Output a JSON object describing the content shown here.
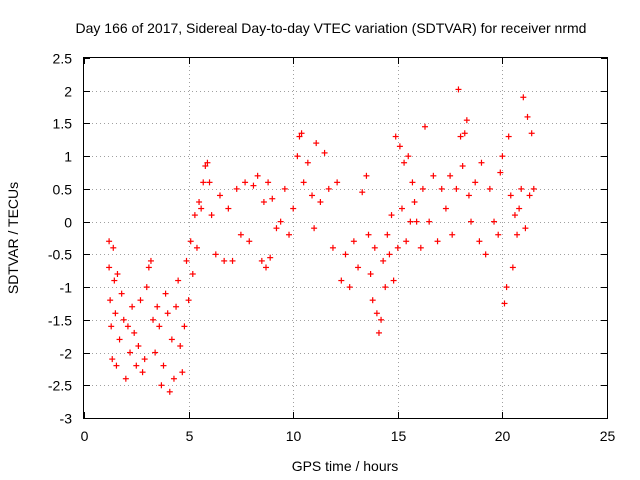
{
  "chart_data": {
    "type": "scatter",
    "title": "Day 166 of 2017, Sidereal Day-to-day VTEC variation (SDTVAR) for receiver nrmd",
    "xlabel": "GPS time / hours",
    "ylabel": "SDTVAR / TECUs",
    "xlim": [
      0,
      25
    ],
    "ylim": [
      -3,
      2.5
    ],
    "xticks": [
      0,
      5,
      10,
      15,
      20,
      25
    ],
    "xtick_labels": [
      "0",
      "5",
      "10",
      "15",
      "20",
      "25"
    ],
    "yticks": [
      -3,
      -2.5,
      -2,
      -1.5,
      -1,
      -0.5,
      0,
      0.5,
      1,
      1.5,
      2,
      2.5
    ],
    "ytick_labels": [
      "-3",
      "-2.5",
      "-2",
      "-1.5",
      "-1",
      "-0.5",
      "0",
      "0.5",
      "1",
      "1.5",
      "2",
      "2.5"
    ],
    "grid": true,
    "marker": "+",
    "color": "#ff0000",
    "series": [
      {
        "name": "SDTVAR",
        "points": [
          [
            1.2,
            -0.3
          ],
          [
            1.2,
            -0.7
          ],
          [
            1.25,
            -1.2
          ],
          [
            1.3,
            -1.6
          ],
          [
            1.35,
            -2.1
          ],
          [
            1.4,
            -0.4
          ],
          [
            1.45,
            -0.9
          ],
          [
            1.5,
            -1.4
          ],
          [
            1.55,
            -2.2
          ],
          [
            1.6,
            -0.8
          ],
          [
            1.7,
            -1.8
          ],
          [
            1.8,
            -1.1
          ],
          [
            1.9,
            -1.5
          ],
          [
            2.0,
            -2.4
          ],
          [
            2.1,
            -1.6
          ],
          [
            2.2,
            -2.0
          ],
          [
            2.3,
            -1.3
          ],
          [
            2.4,
            -1.7
          ],
          [
            2.5,
            -2.2
          ],
          [
            2.6,
            -1.9
          ],
          [
            2.7,
            -1.2
          ],
          [
            2.8,
            -2.3
          ],
          [
            2.9,
            -2.1
          ],
          [
            3.0,
            -1.0
          ],
          [
            3.1,
            -0.7
          ],
          [
            3.2,
            -0.6
          ],
          [
            3.3,
            -1.5
          ],
          [
            3.4,
            -2.0
          ],
          [
            3.5,
            -1.3
          ],
          [
            3.6,
            -1.6
          ],
          [
            3.7,
            -2.5
          ],
          [
            3.8,
            -2.2
          ],
          [
            3.9,
            -1.1
          ],
          [
            4.0,
            -1.4
          ],
          [
            4.1,
            -2.6
          ],
          [
            4.2,
            -1.8
          ],
          [
            4.3,
            -2.4
          ],
          [
            4.4,
            -1.3
          ],
          [
            4.5,
            -0.9
          ],
          [
            4.6,
            -1.9
          ],
          [
            4.7,
            -2.3
          ],
          [
            4.8,
            -1.6
          ],
          [
            4.9,
            -0.6
          ],
          [
            5.0,
            -1.2
          ],
          [
            5.1,
            -0.3
          ],
          [
            5.2,
            -0.8
          ],
          [
            5.3,
            0.1
          ],
          [
            5.4,
            -0.4
          ],
          [
            5.5,
            0.3
          ],
          [
            5.6,
            0.2
          ],
          [
            5.7,
            0.6
          ],
          [
            5.8,
            0.85
          ],
          [
            5.9,
            0.9
          ],
          [
            6.0,
            0.6
          ],
          [
            6.1,
            0.1
          ],
          [
            6.3,
            -0.5
          ],
          [
            6.5,
            0.4
          ],
          [
            6.7,
            -0.6
          ],
          [
            6.9,
            0.2
          ],
          [
            7.1,
            -0.6
          ],
          [
            7.3,
            0.5
          ],
          [
            7.5,
            -0.2
          ],
          [
            7.7,
            0.6
          ],
          [
            7.9,
            -0.3
          ],
          [
            8.1,
            0.55
          ],
          [
            8.3,
            0.7
          ],
          [
            8.5,
            -0.6
          ],
          [
            8.6,
            0.3
          ],
          [
            8.7,
            -0.7
          ],
          [
            8.8,
            0.6
          ],
          [
            8.9,
            -0.55
          ],
          [
            9.0,
            0.35
          ],
          [
            9.2,
            -0.1
          ],
          [
            9.4,
            0.0
          ],
          [
            9.6,
            0.5
          ],
          [
            9.8,
            -0.2
          ],
          [
            10.0,
            0.2
          ],
          [
            10.2,
            1.0
          ],
          [
            10.3,
            1.3
          ],
          [
            10.4,
            1.35
          ],
          [
            10.5,
            0.6
          ],
          [
            10.7,
            0.9
          ],
          [
            10.9,
            0.4
          ],
          [
            11.0,
            -0.1
          ],
          [
            11.1,
            1.2
          ],
          [
            11.3,
            0.3
          ],
          [
            11.5,
            1.05
          ],
          [
            11.7,
            0.5
          ],
          [
            11.9,
            -0.4
          ],
          [
            12.1,
            0.6
          ],
          [
            12.3,
            -0.9
          ],
          [
            12.5,
            -0.5
          ],
          [
            12.7,
            -1.0
          ],
          [
            12.9,
            -0.3
          ],
          [
            13.1,
            -0.7
          ],
          [
            13.3,
            0.45
          ],
          [
            13.5,
            0.7
          ],
          [
            13.6,
            -0.2
          ],
          [
            13.7,
            -0.8
          ],
          [
            13.8,
            -1.2
          ],
          [
            13.9,
            -0.4
          ],
          [
            14.0,
            -1.4
          ],
          [
            14.1,
            -1.7
          ],
          [
            14.2,
            -1.5
          ],
          [
            14.3,
            -0.6
          ],
          [
            14.4,
            -1.0
          ],
          [
            14.5,
            -0.2
          ],
          [
            14.6,
            -0.5
          ],
          [
            14.7,
            0.1
          ],
          [
            14.8,
            -0.9
          ],
          [
            14.9,
            1.3
          ],
          [
            15.0,
            -0.4
          ],
          [
            15.1,
            1.15
          ],
          [
            15.2,
            0.2
          ],
          [
            15.3,
            0.9
          ],
          [
            15.4,
            -0.3
          ],
          [
            15.5,
            1.0
          ],
          [
            15.6,
            0.0
          ],
          [
            15.7,
            0.6
          ],
          [
            15.8,
            0.3
          ],
          [
            15.9,
            0.0
          ],
          [
            16.1,
            -0.4
          ],
          [
            16.2,
            0.5
          ],
          [
            16.3,
            1.45
          ],
          [
            16.5,
            0.0
          ],
          [
            16.7,
            0.7
          ],
          [
            16.9,
            -0.3
          ],
          [
            17.1,
            0.5
          ],
          [
            17.3,
            0.2
          ],
          [
            17.5,
            0.7
          ],
          [
            17.6,
            -0.2
          ],
          [
            17.8,
            0.5
          ],
          [
            17.9,
            2.02
          ],
          [
            18.0,
            1.3
          ],
          [
            18.1,
            0.85
          ],
          [
            18.2,
            1.35
          ],
          [
            18.3,
            1.55
          ],
          [
            18.4,
            0.4
          ],
          [
            18.5,
            0.0
          ],
          [
            18.7,
            0.6
          ],
          [
            18.9,
            -0.3
          ],
          [
            19.0,
            0.9
          ],
          [
            19.2,
            -0.5
          ],
          [
            19.4,
            0.5
          ],
          [
            19.6,
            0.0
          ],
          [
            19.8,
            -0.2
          ],
          [
            19.9,
            0.75
          ],
          [
            20.0,
            1.0
          ],
          [
            20.1,
            -1.25
          ],
          [
            20.2,
            -1.0
          ],
          [
            20.3,
            1.3
          ],
          [
            20.4,
            0.4
          ],
          [
            20.5,
            -0.7
          ],
          [
            20.6,
            0.1
          ],
          [
            20.7,
            -0.2
          ],
          [
            20.8,
            0.2
          ],
          [
            20.9,
            0.5
          ],
          [
            21.0,
            1.9
          ],
          [
            21.1,
            -0.1
          ],
          [
            21.2,
            1.6
          ],
          [
            21.3,
            0.4
          ],
          [
            21.4,
            1.35
          ],
          [
            21.5,
            0.5
          ]
        ]
      }
    ]
  }
}
